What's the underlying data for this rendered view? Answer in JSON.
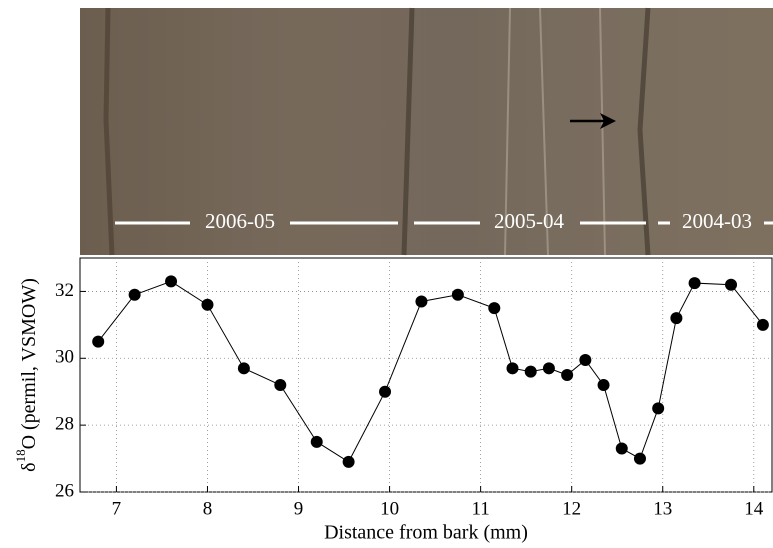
{
  "chart_data": {
    "type": "line",
    "annotations": [
      "2006-05",
      "2005-04",
      "2004-03"
    ],
    "x_label": "Distance from bark (mm)",
    "y_label": "δ18O (permil, VSMOW)",
    "x": [
      6.8,
      7.2,
      7.6,
      8.0,
      8.4,
      8.8,
      9.2,
      9.55,
      9.95,
      10.35,
      10.75,
      11.15,
      11.35,
      11.55,
      11.75,
      11.95,
      12.15,
      12.35,
      12.55,
      12.75,
      12.95,
      13.15,
      13.35,
      13.75,
      14.1
    ],
    "series": [
      {
        "color": "#000000",
        "values": [
          30.5,
          31.9,
          32.3,
          31.6,
          29.7,
          29.2,
          27.5,
          26.9,
          29.0,
          31.7,
          31.9,
          31.5,
          29.7,
          29.6,
          29.7,
          29.5,
          29.95,
          29.2,
          27.3,
          27.0,
          28.5,
          31.2,
          32.25,
          32.2,
          31.0
        ]
      }
    ],
    "xlim": [
      6.6,
      14.2
    ],
    "ylim": [
      26,
      33
    ],
    "xticks": [
      7,
      8,
      9,
      10,
      11,
      12,
      13,
      14
    ],
    "yticks": [
      26,
      28,
      30,
      32
    ],
    "grid": true
  }
}
